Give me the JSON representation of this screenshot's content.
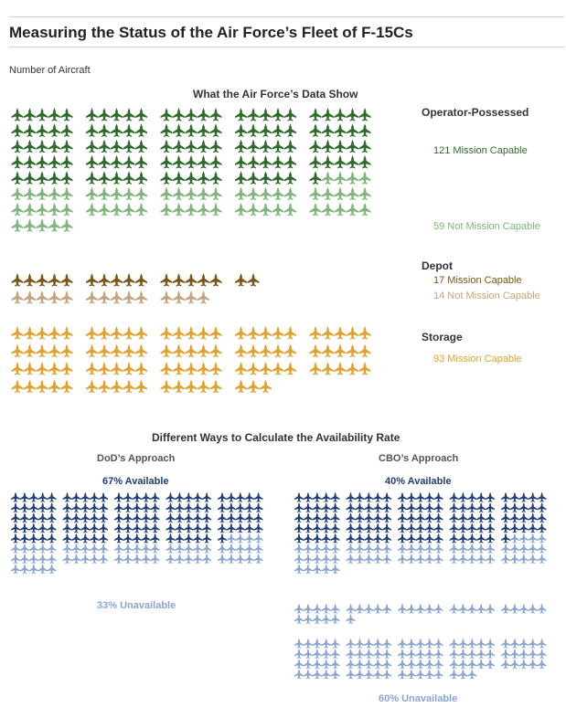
{
  "title": "Measuring the Status of the Air Force’s Fleet of F-15Cs",
  "unit_label": "Number of Aircraft",
  "colors": {
    "op_mc": "#2e6a2b",
    "op_nmc": "#7db57a",
    "depot_mc": "#7a5514",
    "depot_nmc": "#c2a57a",
    "storage_mc": "#e0a12e",
    "available": "#1f3d78",
    "unavailable": "#8aa4d2"
  },
  "chart_data": [
    {
      "type": "pictograph",
      "title": "What the Air Force’s Data Show",
      "icon": "jet-fighter-icon",
      "groups": [
        {
          "name": "Operator-Possessed",
          "series": [
            {
              "name": "Mission Capable",
              "label": "121 Mission Capable",
              "value": 121,
              "color_key": "op_mc"
            },
            {
              "name": "Not Mission Capable",
              "label": "59 Not Mission Capable",
              "value": 59,
              "color_key": "op_nmc"
            }
          ]
        },
        {
          "name": "Depot",
          "series": [
            {
              "name": "Mission Capable",
              "label": "17 Mission Capable",
              "value": 17,
              "color_key": "depot_mc"
            },
            {
              "name": "Not Mission Capable",
              "label": "14 Not Mission Capable",
              "value": 14,
              "color_key": "depot_nmc"
            }
          ]
        },
        {
          "name": "Storage",
          "series": [
            {
              "name": "Mission Capable",
              "label": "93 Mission Capable",
              "value": 93,
              "color_key": "storage_mc"
            }
          ]
        }
      ]
    },
    {
      "type": "pictograph",
      "title": "Different Ways to Calculate the Availability Rate",
      "approaches": [
        {
          "name": "DoD’s Approach",
          "available_label": "67% Available",
          "unavailable_label": "33% Unavailable",
          "available_count": 121,
          "unavailable_count": 59,
          "available_pct": 67,
          "unavailable_pct": 33
        },
        {
          "name": "CBO’s Approach",
          "available_label": "40% Available",
          "unavailable_label": "60% Unavailable",
          "available_count": 121,
          "unavailable_count": 183,
          "available_pct": 40,
          "unavailable_pct": 60
        }
      ]
    }
  ]
}
